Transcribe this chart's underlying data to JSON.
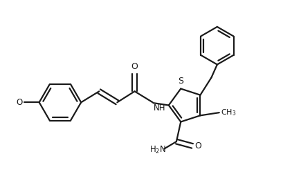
{
  "background_color": "#ffffff",
  "line_color": "#1a1a1a",
  "line_width": 1.6,
  "fig_width": 4.22,
  "fig_height": 2.84,
  "dpi": 100,
  "xlim": [
    0,
    10
  ],
  "ylim": [
    0,
    6.7
  ]
}
